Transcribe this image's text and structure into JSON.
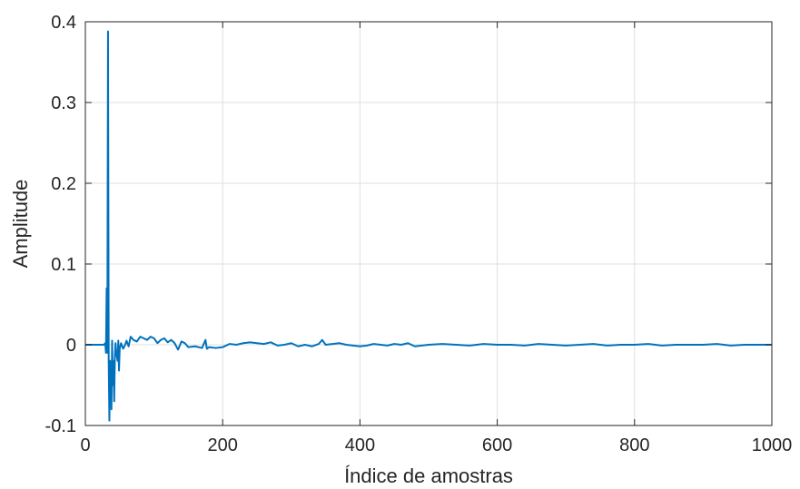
{
  "chart_data": {
    "type": "line",
    "title": "",
    "xlabel": "Índice de amostras",
    "ylabel": "Amplitude",
    "xlim": [
      0,
      1000
    ],
    "ylim": [
      -0.1,
      0.4
    ],
    "xticks": [
      0,
      200,
      400,
      600,
      800,
      1000
    ],
    "xtick_labels": [
      "0",
      "200",
      "400",
      "600",
      "800",
      "1000"
    ],
    "yticks": [
      -0.1,
      0,
      0.1,
      0.2,
      0.3,
      0.4
    ],
    "ytick_labels": [
      "-0.1",
      "0",
      "0.1",
      "0.2",
      "0.3",
      "0.4"
    ],
    "grid": true,
    "color": "#0072BD",
    "series": [
      {
        "name": "",
        "x": [
          0,
          20,
          27,
          29,
          30,
          31,
          32,
          33,
          34,
          35,
          36,
          37,
          38,
          39,
          40,
          41,
          42,
          43,
          44,
          45,
          46,
          47,
          48,
          49,
          50,
          52,
          55,
          58,
          60,
          63,
          66,
          70,
          75,
          80,
          85,
          90,
          95,
          100,
          105,
          110,
          115,
          120,
          125,
          130,
          135,
          140,
          145,
          150,
          160,
          170,
          175,
          177,
          180,
          190,
          200,
          210,
          220,
          230,
          240,
          250,
          260,
          270,
          280,
          290,
          300,
          310,
          320,
          330,
          340,
          345,
          350,
          360,
          370,
          380,
          390,
          400,
          410,
          420,
          430,
          440,
          450,
          460,
          470,
          480,
          490,
          500,
          520,
          540,
          560,
          580,
          600,
          620,
          640,
          660,
          680,
          700,
          720,
          740,
          760,
          780,
          800,
          820,
          840,
          860,
          880,
          900,
          920,
          940,
          960,
          980,
          1000
        ],
        "y": [
          0,
          0,
          0,
          0.002,
          -0.01,
          0.07,
          -0.01,
          0.388,
          -0.02,
          -0.094,
          -0.02,
          -0.045,
          -0.08,
          0.005,
          -0.05,
          -0.02,
          -0.07,
          -0.015,
          0.002,
          -0.01,
          -0.015,
          -0.02,
          0.005,
          -0.032,
          -0.005,
          0.002,
          -0.005,
          0.0,
          0.005,
          -0.002,
          0.01,
          0.006,
          0.004,
          0.01,
          0.008,
          0.006,
          0.01,
          0.008,
          0.002,
          0.006,
          0.008,
          0.003,
          0.006,
          0.002,
          -0.006,
          0.004,
          0.002,
          -0.003,
          -0.002,
          -0.004,
          0.006,
          -0.005,
          -0.003,
          -0.004,
          -0.003,
          0.001,
          0.0,
          0.002,
          0.003,
          0.002,
          0.001,
          0.003,
          -0.001,
          0.0,
          0.002,
          -0.002,
          0.0,
          -0.002,
          0.001,
          0.006,
          0.0,
          0.001,
          0.002,
          0.0,
          -0.001,
          -0.002,
          -0.001,
          0.001,
          0.0,
          -0.001,
          0.001,
          0.0,
          0.002,
          -0.002,
          -0.001,
          0.0,
          0.001,
          0.0,
          -0.001,
          0.001,
          0.0,
          0.0,
          -0.001,
          0.001,
          0.0,
          -0.001,
          0.0,
          0.001,
          -0.001,
          0.0,
          0.0,
          0.001,
          -0.001,
          0.0,
          0.0,
          0.0,
          0.001,
          -0.001,
          0.0,
          0.0,
          0.0
        ]
      }
    ]
  }
}
